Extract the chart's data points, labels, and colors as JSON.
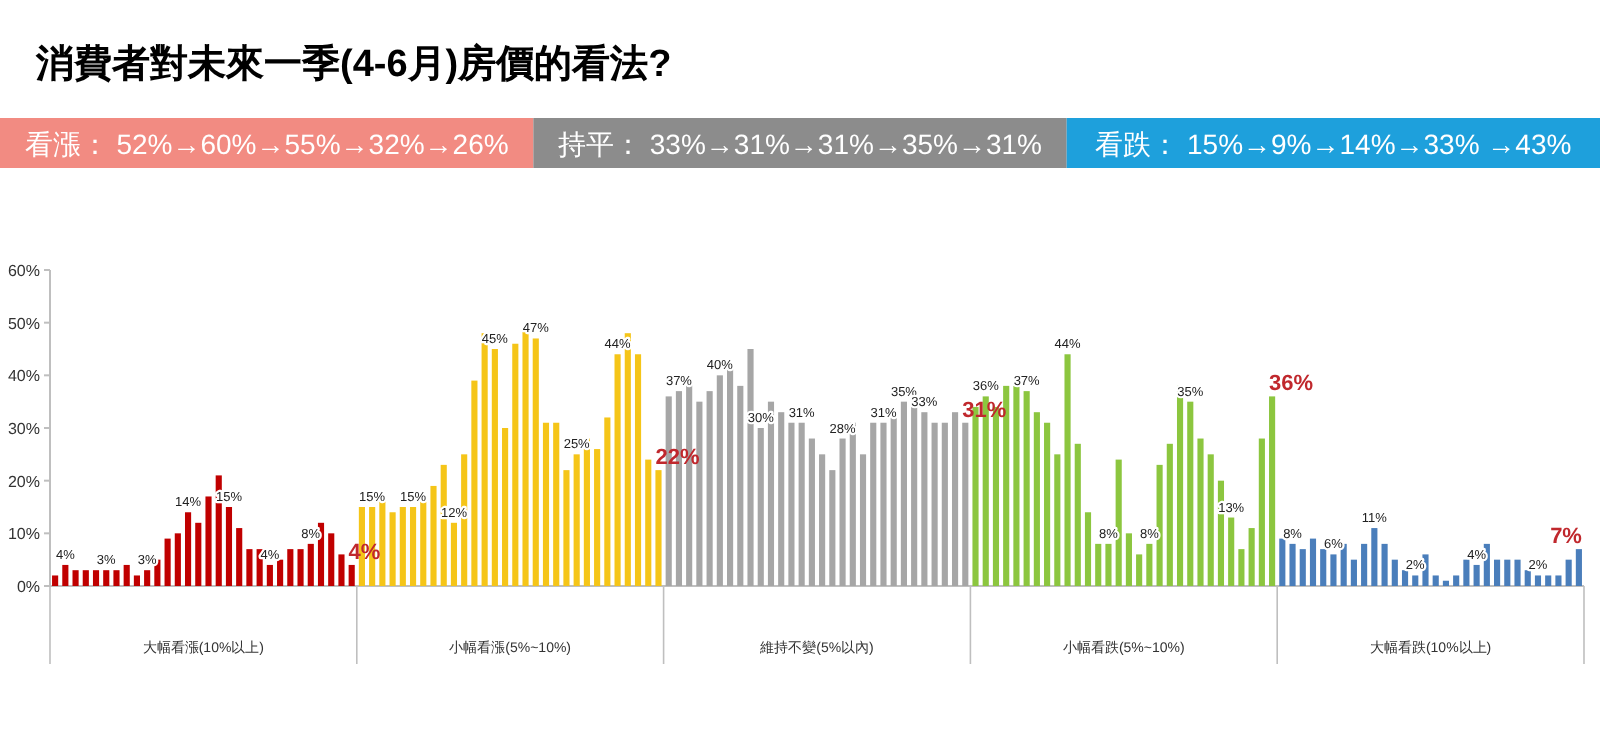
{
  "chart_data": [
    {
      "type": "other",
      "title": "消費者對未來一季(4-6月)房價的看法?",
      "annotations": [
        "看漲： 52%→60%→55%→32%→26%",
        "持平： 33%→31%→31%→35%→31%",
        "看跌： 15%→9%→14%→33% →43%"
      ]
    },
    {
      "type": "bar",
      "tick_labels": "y",
      "ylim": [
        0,
        60
      ],
      "annotations": [
        "大幅看漲(10%以上)",
        "小幅看漲(5%~10%)",
        "維持不變(5%以內)",
        "小幅看跌(5%~10%)",
        "大幅看跌(10%以上)"
      ],
      "yticks": [
        {
          "value": 0,
          "label": "0%"
        },
        {
          "value": 10,
          "label": "10%"
        },
        {
          "value": 20,
          "label": "20%"
        },
        {
          "value": 30,
          "label": "30%"
        },
        {
          "value": 40,
          "label": "40%"
        },
        {
          "value": 50,
          "label": "50%"
        },
        {
          "value": 60,
          "label": "60%"
        }
      ],
      "categories": [
        null,
        null,
        null,
        null,
        null,
        null,
        null,
        null,
        null,
        null,
        null,
        null,
        null,
        null,
        null,
        null,
        null,
        null,
        null,
        null,
        null,
        null,
        null,
        null,
        null,
        null,
        null,
        null,
        null,
        null,
        null,
        null,
        null,
        null,
        null,
        null,
        null,
        null,
        null,
        null,
        null,
        null,
        null,
        null,
        null,
        null,
        null,
        null,
        null,
        null,
        null,
        null,
        null,
        null,
        null,
        null,
        null,
        null,
        null,
        null,
        null,
        null,
        null,
        null,
        null,
        null,
        null,
        null,
        null,
        null,
        null,
        null,
        null,
        null,
        null,
        null,
        null,
        null,
        null,
        null,
        null,
        null,
        null,
        null,
        null,
        null,
        null,
        null,
        null,
        null,
        null,
        null,
        null,
        null,
        null,
        null,
        null,
        null,
        null,
        null,
        null,
        null,
        null,
        null,
        null,
        null,
        null,
        null,
        null,
        null,
        null,
        null,
        null,
        null,
        null,
        null,
        null,
        null,
        null,
        null,
        null,
        null,
        null,
        null,
        null,
        null,
        null,
        null,
        null,
        null,
        null,
        null,
        null,
        null,
        null,
        null,
        null,
        null,
        null,
        null,
        null,
        null,
        null,
        null,
        null,
        null,
        null,
        null,
        null,
        null
      ],
      "values": [
        2,
        4,
        3,
        3,
        3,
        3,
        3,
        4,
        2,
        3,
        5,
        9,
        10,
        14,
        12,
        17,
        21,
        15,
        11,
        7,
        7,
        4,
        5,
        7,
        7,
        8,
        12,
        10,
        6,
        4,
        15,
        15,
        17,
        14,
        15,
        15,
        16,
        19,
        23,
        12,
        25,
        39,
        48,
        45,
        30,
        46,
        49,
        47,
        31,
        31,
        22,
        25,
        28,
        26,
        32,
        44,
        48,
        44,
        24,
        22,
        36,
        37,
        39,
        35,
        37,
        40,
        42,
        38,
        45,
        30,
        35,
        33,
        31,
        31,
        28,
        25,
        22,
        28,
        31,
        25,
        31,
        31,
        33,
        35,
        35,
        33,
        31,
        31,
        33,
        31,
        34,
        36,
        34,
        38,
        38,
        37,
        33,
        31,
        25,
        44,
        27,
        14,
        8,
        8,
        24,
        10,
        6,
        8,
        23,
        27,
        38,
        35,
        28,
        25,
        20,
        13,
        7,
        11,
        28,
        36,
        9,
        8,
        7,
        9,
        7,
        6,
        8,
        5,
        8,
        11,
        8,
        5,
        3,
        2,
        6,
        2,
        1,
        2,
        5,
        4,
        8,
        5,
        5,
        5,
        3,
        2,
        2,
        2,
        5,
        7
      ],
      "colors": [
        "#c00000",
        "#c00000",
        "#c00000",
        "#c00000",
        "#c00000",
        "#c00000",
        "#c00000",
        "#c00000",
        "#c00000",
        "#c00000",
        "#c00000",
        "#c00000",
        "#c00000",
        "#c00000",
        "#c00000",
        "#c00000",
        "#c00000",
        "#c00000",
        "#c00000",
        "#c00000",
        "#c00000",
        "#c00000",
        "#c00000",
        "#c00000",
        "#c00000",
        "#c00000",
        "#c00000",
        "#c00000",
        "#c00000",
        "#c00000",
        "#f5c518",
        "#f5c518",
        "#f5c518",
        "#f5c518",
        "#f5c518",
        "#f5c518",
        "#f5c518",
        "#f5c518",
        "#f5c518",
        "#f5c518",
        "#f5c518",
        "#f5c518",
        "#f5c518",
        "#f5c518",
        "#f5c518",
        "#f5c518",
        "#f5c518",
        "#f5c518",
        "#f5c518",
        "#f5c518",
        "#f5c518",
        "#f5c518",
        "#f5c518",
        "#f5c518",
        "#f5c518",
        "#f5c518",
        "#f5c518",
        "#f5c518",
        "#f5c518",
        "#f5c518",
        "#a6a6a6",
        "#a6a6a6",
        "#a6a6a6",
        "#a6a6a6",
        "#a6a6a6",
        "#a6a6a6",
        "#a6a6a6",
        "#a6a6a6",
        "#a6a6a6",
        "#a6a6a6",
        "#a6a6a6",
        "#a6a6a6",
        "#a6a6a6",
        "#a6a6a6",
        "#a6a6a6",
        "#a6a6a6",
        "#a6a6a6",
        "#a6a6a6",
        "#a6a6a6",
        "#a6a6a6",
        "#a6a6a6",
        "#a6a6a6",
        "#a6a6a6",
        "#a6a6a6",
        "#a6a6a6",
        "#a6a6a6",
        "#a6a6a6",
        "#a6a6a6",
        "#a6a6a6",
        "#a6a6a6",
        "#8cc63f",
        "#8cc63f",
        "#8cc63f",
        "#8cc63f",
        "#8cc63f",
        "#8cc63f",
        "#8cc63f",
        "#8cc63f",
        "#8cc63f",
        "#8cc63f",
        "#8cc63f",
        "#8cc63f",
        "#8cc63f",
        "#8cc63f",
        "#8cc63f",
        "#8cc63f",
        "#8cc63f",
        "#8cc63f",
        "#8cc63f",
        "#8cc63f",
        "#8cc63f",
        "#8cc63f",
        "#8cc63f",
        "#8cc63f",
        "#8cc63f",
        "#8cc63f",
        "#8cc63f",
        "#8cc63f",
        "#8cc63f",
        "#8cc63f",
        "#4a7ebb",
        "#4a7ebb",
        "#4a7ebb",
        "#4a7ebb",
        "#4a7ebb",
        "#4a7ebb",
        "#4a7ebb",
        "#4a7ebb",
        "#4a7ebb",
        "#4a7ebb",
        "#4a7ebb",
        "#4a7ebb",
        "#4a7ebb",
        "#4a7ebb",
        "#4a7ebb",
        "#4a7ebb",
        "#4a7ebb",
        "#4a7ebb",
        "#4a7ebb",
        "#4a7ebb",
        "#4a7ebb",
        "#4a7ebb",
        "#4a7ebb",
        "#4a7ebb",
        "#4a7ebb",
        "#4a7ebb",
        "#4a7ebb",
        "#4a7ebb",
        "#4a7ebb",
        "#4a7ebb"
      ],
      "value_labels": [
        null,
        "4%",
        null,
        null,
        null,
        "3%",
        null,
        null,
        null,
        "3%",
        null,
        null,
        null,
        "14%",
        null,
        null,
        null,
        "15%",
        null,
        null,
        null,
        "4%",
        null,
        null,
        null,
        "8%",
        null,
        null,
        null,
        "4%",
        null,
        "15%",
        null,
        null,
        null,
        "15%",
        null,
        null,
        null,
        "12%",
        null,
        null,
        null,
        "45%",
        null,
        null,
        null,
        "47%",
        null,
        null,
        null,
        "25%",
        null,
        null,
        null,
        "44%",
        null,
        null,
        null,
        "22%",
        null,
        "37%",
        null,
        null,
        null,
        "40%",
        null,
        null,
        null,
        "30%",
        null,
        null,
        null,
        "31%",
        null,
        null,
        null,
        "28%",
        null,
        null,
        null,
        "31%",
        null,
        "35%",
        null,
        "33%",
        null,
        null,
        null,
        "31%",
        null,
        "36%",
        null,
        null,
        null,
        "37%",
        null,
        null,
        null,
        "44%",
        null,
        null,
        null,
        "8%",
        null,
        null,
        null,
        "8%",
        null,
        null,
        null,
        "35%",
        null,
        null,
        null,
        "13%",
        null,
        null,
        null,
        "36%",
        null,
        "8%",
        null,
        null,
        null,
        "6%",
        null,
        null,
        null,
        "11%",
        null,
        null,
        null,
        "2%",
        null,
        null,
        null,
        null,
        null,
        "4%",
        null,
        null,
        null,
        null,
        null,
        "2%",
        null,
        null,
        null,
        "7%"
      ]
    }
  ]
}
